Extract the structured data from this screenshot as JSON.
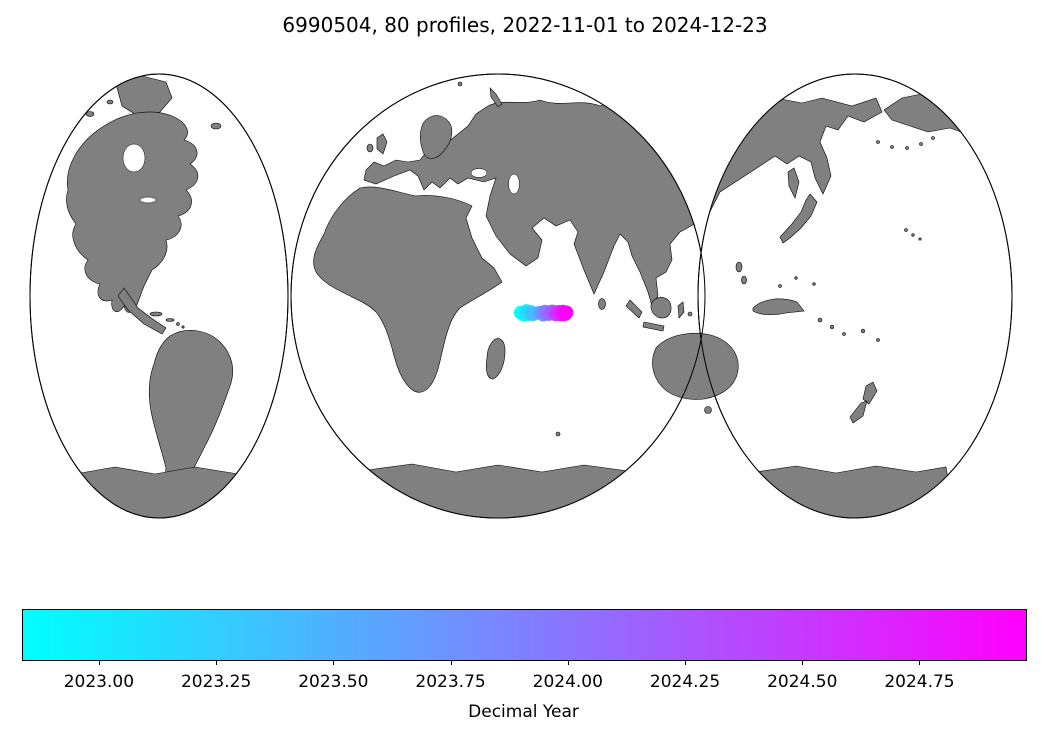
{
  "figure": {
    "background": "#ffffff"
  },
  "chart_data": {
    "type": "scatter",
    "title": "6990504, 80 profiles, 2022-11-01 to 2024-12-23",
    "float_id": "6990504",
    "profiles_count": 80,
    "date_start": "2022-11-01",
    "date_end": "2024-12-23",
    "map": {
      "projection": "interrupted three-lobe world map",
      "land_color": "#808080",
      "ocean_color": "#ffffff",
      "coastline_color": "#000000",
      "points_region": "central Indian Ocean"
    },
    "colorbar": {
      "label": "Decimal Year",
      "colormap": "cool",
      "min_color": "#00ffff",
      "max_color": "#ff00ff",
      "vmin": 2022.836,
      "vmax": 2024.975,
      "ticks": [
        2023.0,
        2023.25,
        2023.5,
        2023.75,
        2024.0,
        2024.25,
        2024.5,
        2024.75
      ],
      "tick_labels": [
        "2023.00",
        "2023.25",
        "2023.50",
        "2023.75",
        "2024.00",
        "2024.25",
        "2024.50",
        "2024.75"
      ]
    },
    "point_radius": 7,
    "points": [
      {
        "fx": 0.496,
        "fy": 0.537,
        "decimal_year": 2022.86
      },
      {
        "fx": 0.499,
        "fy": 0.541,
        "decimal_year": 2022.92
      },
      {
        "fx": 0.5015,
        "fy": 0.5335,
        "decimal_year": 2022.98
      },
      {
        "fx": 0.504,
        "fy": 0.5395,
        "decimal_year": 2023.06
      },
      {
        "fx": 0.502,
        "fy": 0.537,
        "decimal_year": 2023.14
      },
      {
        "fx": 0.506,
        "fy": 0.536,
        "decimal_year": 2023.25
      },
      {
        "fx": 0.508,
        "fy": 0.54,
        "decimal_year": 2023.42
      },
      {
        "fx": 0.515,
        "fy": 0.537,
        "decimal_year": 2023.65
      },
      {
        "fx": 0.518,
        "fy": 0.541,
        "decimal_year": 2023.8
      },
      {
        "fx": 0.52,
        "fy": 0.535,
        "decimal_year": 2023.92
      },
      {
        "fx": 0.5235,
        "fy": 0.5395,
        "decimal_year": 2024.08
      },
      {
        "fx": 0.527,
        "fy": 0.5345,
        "decimal_year": 2024.25
      },
      {
        "fx": 0.5305,
        "fy": 0.5405,
        "decimal_year": 2024.42
      },
      {
        "fx": 0.533,
        "fy": 0.5355,
        "decimal_year": 2024.58
      },
      {
        "fx": 0.5355,
        "fy": 0.5405,
        "decimal_year": 2024.72
      },
      {
        "fx": 0.5375,
        "fy": 0.535,
        "decimal_year": 2024.84
      },
      {
        "fx": 0.5395,
        "fy": 0.54,
        "decimal_year": 2024.92
      },
      {
        "fx": 0.541,
        "fy": 0.5365,
        "decimal_year": 2024.97
      }
    ]
  }
}
